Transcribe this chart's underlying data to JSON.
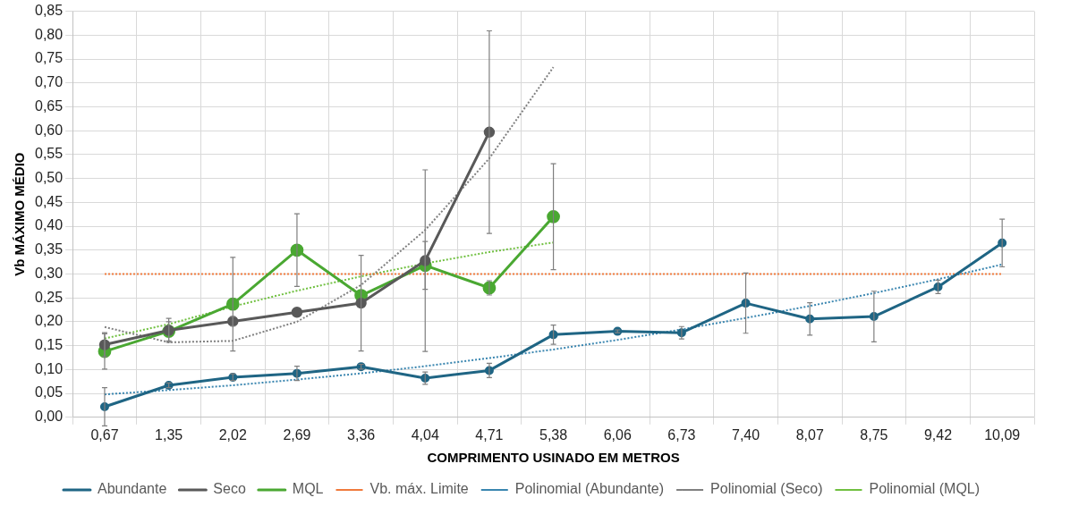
{
  "chart_data": {
    "type": "line",
    "xlabel": "COMPRIMENTO USINADO EM METROS",
    "ylabel": "Vb MÁXIMO MÉDIO",
    "categories": [
      "0,67",
      "1,35",
      "2,02",
      "2,69",
      "3,36",
      "4,04",
      "4,71",
      "5,38",
      "6,06",
      "6,73",
      "7,40",
      "8,07",
      "8,75",
      "9,42",
      "10,09"
    ],
    "series": [
      {
        "name": "Abundante",
        "color": "#1f6584",
        "marker": "circle",
        "line_style": "solid",
        "values": [
          0.022,
          0.067,
          0.084,
          0.092,
          0.106,
          0.082,
          0.098,
          0.173,
          0.18,
          0.177,
          0.239,
          0.206,
          0.211,
          0.273,
          0.365
        ],
        "errors": [
          0.04,
          0.005,
          0.007,
          0.015,
          0.005,
          0.013,
          0.015,
          0.02,
          0.003,
          0.013,
          0.063,
          0.034,
          0.053,
          0.014,
          0.05
        ]
      },
      {
        "name": "Seco",
        "color": "#595959",
        "marker": "circle",
        "line_style": "solid",
        "values": [
          0.152,
          0.182,
          0.201,
          0.22,
          0.239,
          0.328,
          0.597,
          null,
          null,
          null,
          null,
          null,
          null,
          null,
          null
        ],
        "errors": [
          0.025,
          0.025,
          0.01,
          null,
          0.1,
          0.19,
          0.212,
          null,
          null,
          null,
          null,
          null,
          null,
          null,
          null
        ]
      },
      {
        "name": "MQL",
        "color": "#4aa832",
        "marker": "circle",
        "line_style": "solid",
        "values": [
          0.138,
          0.18,
          0.237,
          0.35,
          0.255,
          0.318,
          0.271,
          0.42,
          null,
          null,
          null,
          null,
          null,
          null,
          null
        ],
        "errors": [
          0.037,
          0.02,
          0.098,
          0.076,
          null,
          0.05,
          0.015,
          0.111,
          null,
          null,
          null,
          null,
          null,
          null,
          null
        ]
      },
      {
        "name": "Vb. máx. Limite",
        "color": "#f07a3c",
        "marker": "none",
        "line_style": "dotted",
        "values": [
          0.3,
          0.3,
          0.3,
          0.3,
          0.3,
          0.3,
          0.3,
          0.3,
          0.3,
          0.3,
          0.3,
          0.3,
          0.3,
          0.3,
          0.3
        ]
      },
      {
        "name": "Polinomial (Abundante)",
        "color": "#3a86b0",
        "marker": "none",
        "line_style": "dotted",
        "values": [
          0.048,
          0.057,
          0.067,
          0.079,
          0.092,
          0.107,
          0.124,
          0.142,
          0.162,
          0.184,
          0.208,
          0.233,
          0.26,
          0.289,
          0.32
        ]
      },
      {
        "name": "Polinomial (Seco)",
        "color": "#808080",
        "marker": "none",
        "line_style": "dotted",
        "values": [
          0.189,
          0.157,
          0.16,
          0.2,
          0.277,
          0.392,
          0.542,
          0.733,
          null,
          null,
          null,
          null,
          null,
          null,
          null
        ]
      },
      {
        "name": "Polinomial (MQL)",
        "color": "#70c040",
        "marker": "none",
        "line_style": "dotted",
        "values": [
          0.165,
          0.195,
          0.232,
          0.265,
          0.295,
          0.322,
          0.346,
          0.366,
          null,
          null,
          null,
          null,
          null,
          null,
          null
        ]
      }
    ],
    "ylim": [
      0,
      0.85
    ],
    "yticks": [
      {
        "value": 0,
        "label": "0,00"
      },
      {
        "value": 0.05,
        "label": "0,05"
      },
      {
        "value": 0.1,
        "label": "0,10"
      },
      {
        "value": 0.15,
        "label": "0,15"
      },
      {
        "value": 0.2,
        "label": "0,20"
      },
      {
        "value": 0.25,
        "label": "0,25"
      },
      {
        "value": 0.3,
        "label": "0,30"
      },
      {
        "value": 0.35,
        "label": "0,35"
      },
      {
        "value": 0.4,
        "label": "0,40"
      },
      {
        "value": 0.45,
        "label": "0,45"
      },
      {
        "value": 0.5,
        "label": "0,50"
      },
      {
        "value": 0.55,
        "label": "0,55"
      },
      {
        "value": 0.6,
        "label": "0,60"
      },
      {
        "value": 0.65,
        "label": "0,65"
      },
      {
        "value": 0.7,
        "label": "0,70"
      },
      {
        "value": 0.75,
        "label": "0,75"
      },
      {
        "value": 0.8,
        "label": "0,80"
      },
      {
        "value": 0.85,
        "label": "0,85"
      }
    ],
    "grid": true,
    "legend": "bottom"
  }
}
